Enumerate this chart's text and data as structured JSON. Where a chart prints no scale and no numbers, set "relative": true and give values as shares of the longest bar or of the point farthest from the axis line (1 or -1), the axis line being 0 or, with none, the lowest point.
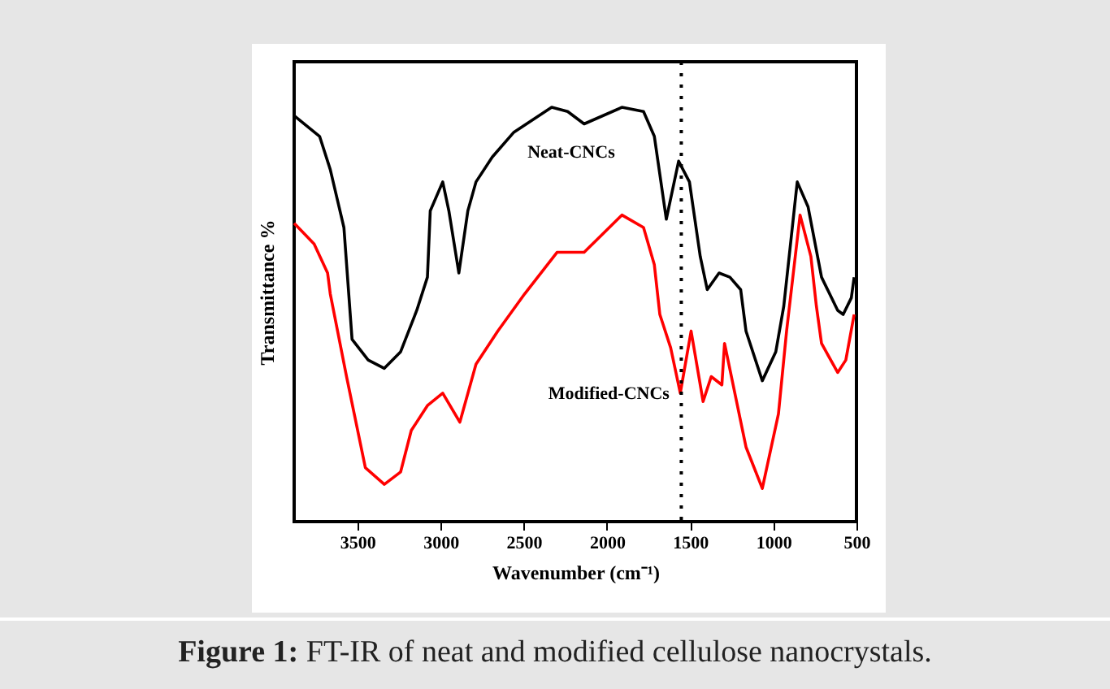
{
  "chart_data": {
    "type": "line",
    "relative": true,
    "xlabel": "Wavenumber (cm⁻¹)",
    "ylabel": "Transmittance %",
    "xlim": [
      3880,
      500
    ],
    "xticks": [
      3500,
      3000,
      2500,
      2000,
      1500,
      1000,
      500
    ],
    "grid": false,
    "legend": false,
    "marker": "none",
    "line_style": "solid",
    "annotations": [
      "Figure 1: FT-IR of neat and modified cellulose nanocrystals."
    ],
    "ref_lines": [
      {
        "axis": "x",
        "value": 1553,
        "line_style": "dotted",
        "color": "#000000"
      }
    ],
    "series": [
      {
        "name": "Neat-CNCs",
        "color": "#000000",
        "x": [
          3880,
          3727,
          3663,
          3581,
          3532,
          3435,
          3338,
          3240,
          3143,
          3079,
          3062,
          2987,
          2950,
          2890,
          2836,
          2787,
          2689,
          2559,
          2332,
          2236,
          2137,
          1910,
          1780,
          1715,
          1643,
          1569,
          1504,
          1439,
          1397,
          1326,
          1261,
          1196,
          1164,
          1066,
          985,
          937,
          856,
          791,
          710,
          613,
          580,
          531,
          514
        ],
        "values": [
          0.98,
          0.93,
          0.85,
          0.71,
          0.44,
          0.39,
          0.37,
          0.41,
          0.51,
          0.59,
          0.75,
          0.82,
          0.75,
          0.6,
          0.75,
          0.82,
          0.88,
          0.94,
          1.0,
          0.99,
          0.96,
          1.0,
          0.99,
          0.93,
          0.73,
          0.87,
          0.82,
          0.64,
          0.56,
          0.6,
          0.59,
          0.56,
          0.46,
          0.34,
          0.41,
          0.52,
          0.82,
          0.76,
          0.59,
          0.51,
          0.5,
          0.54,
          0.59
        ]
      },
      {
        "name": "Modified-CNCs",
        "color": "#ff0000",
        "x": [
          3880,
          3760,
          3679,
          3663,
          3565,
          3452,
          3338,
          3240,
          3176,
          3079,
          2987,
          2884,
          2787,
          2656,
          2494,
          2300,
          2137,
          1910,
          1780,
          1715,
          1682,
          1617,
          1559,
          1494,
          1422,
          1373,
          1309,
          1293,
          1164,
          1066,
          969,
          920,
          839,
          774,
          741,
          710,
          613,
          564,
          514
        ],
        "values": [
          0.72,
          0.67,
          0.6,
          0.55,
          0.35,
          0.13,
          0.09,
          0.12,
          0.22,
          0.28,
          0.31,
          0.24,
          0.38,
          0.46,
          0.55,
          0.65,
          0.65,
          0.74,
          0.71,
          0.62,
          0.5,
          0.42,
          0.31,
          0.46,
          0.29,
          0.35,
          0.33,
          0.43,
          0.18,
          0.08,
          0.26,
          0.46,
          0.74,
          0.64,
          0.52,
          0.43,
          0.36,
          0.39,
          0.5
        ]
      }
    ]
  }
}
